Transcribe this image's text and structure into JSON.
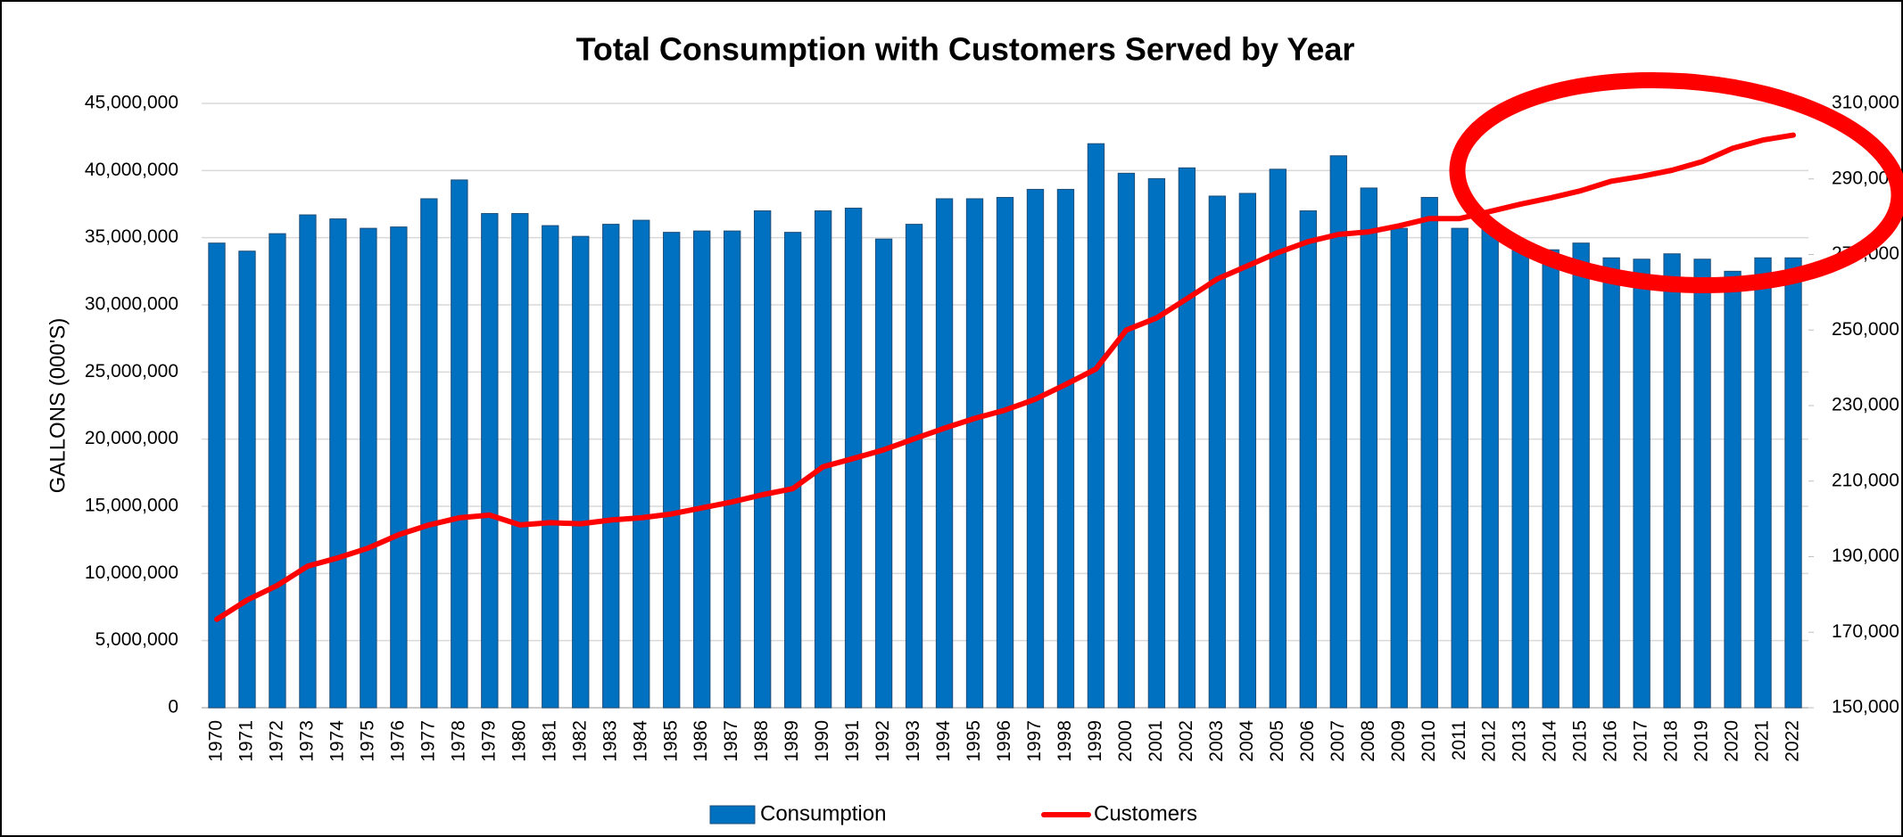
{
  "chart_data": {
    "type": "bar_line",
    "title": "Total Consumption with Customers Served by Year",
    "y_label": "GALLONS (000'S)",
    "categories": [
      "1970",
      "1971",
      "1972",
      "1973",
      "1974",
      "1975",
      "1976",
      "1977",
      "1978",
      "1979",
      "1980",
      "1981",
      "1982",
      "1983",
      "1984",
      "1985",
      "1986",
      "1987",
      "1988",
      "1989",
      "1990",
      "1991",
      "1992",
      "1993",
      "1994",
      "1995",
      "1996",
      "1997",
      "1998",
      "1999",
      "2000",
      "2001",
      "2002",
      "2003",
      "2004",
      "2005",
      "2006",
      "2007",
      "2008",
      "2009",
      "2010",
      "2011",
      "2012",
      "2013",
      "2014",
      "2015",
      "2016",
      "2017",
      "2018",
      "2019",
      "2020",
      "2021",
      "2022"
    ],
    "series": [
      {
        "name": "Consumption",
        "color": "#0070c0",
        "axis": "y",
        "values": [
          34600000,
          34000000,
          35300000,
          36700000,
          36400000,
          35700000,
          35800000,
          37900000,
          39300000,
          36800000,
          36800000,
          35900000,
          35100000,
          36000000,
          36300000,
          35400000,
          35500000,
          35500000,
          37000000,
          35400000,
          37000000,
          37200000,
          34900000,
          36000000,
          37900000,
          37900000,
          38000000,
          38600000,
          38600000,
          42000000,
          39800000,
          39400000,
          40200000,
          38100000,
          38300000,
          40100000,
          37000000,
          41100000,
          38700000,
          35700000,
          38000000,
          35700000,
          35900000,
          34500000,
          34100000,
          34600000,
          33500000,
          33400000,
          33800000,
          33400000,
          32500000,
          33500000,
          33500000
        ]
      },
      {
        "name": "Customers",
        "color": "#ff0000",
        "axis": "y2",
        "values": [
          173400,
          178500,
          182400,
          187500,
          189700,
          192300,
          195800,
          198400,
          200300,
          201000,
          198400,
          199000,
          198700,
          199700,
          200300,
          201300,
          202900,
          204500,
          206400,
          208000,
          213800,
          216000,
          218300,
          221200,
          224000,
          226600,
          228800,
          231700,
          235600,
          239700,
          250000,
          253200,
          258300,
          263500,
          267000,
          270500,
          273400,
          275300,
          276000,
          277600,
          279500,
          279500,
          281400,
          283300,
          285000,
          286900,
          289400,
          290700,
          292300,
          294600,
          298100,
          300300,
          301600
        ]
      }
    ],
    "ylim": [
      0,
      45000000
    ],
    "yticks": [
      0,
      {
        "value": 5000000,
        "label": "5,000,000"
      },
      {
        "value": 10000000,
        "label": "10,000,000"
      },
      {
        "value": 15000000,
        "label": "15,000,000"
      },
      {
        "value": 20000000,
        "label": "20,000,000"
      },
      {
        "value": 25000000,
        "label": "25,000,000"
      },
      {
        "value": 30000000,
        "label": "30,000,000"
      },
      {
        "value": 35000000,
        "label": "35,000,000"
      },
      {
        "value": 40000000,
        "label": "40,000,000"
      },
      {
        "value": 45000000,
        "label": "45,000,000"
      }
    ],
    "y2lim": [
      150000,
      310000
    ],
    "y2ticks": [
      {
        "value": 150000,
        "label": "150,000"
      },
      {
        "value": 170000,
        "label": "170,000"
      },
      {
        "value": 190000,
        "label": "190,000"
      },
      {
        "value": 210000,
        "label": "210,000"
      },
      {
        "value": 230000,
        "label": "230,000"
      },
      {
        "value": 250000,
        "label": "250,000"
      },
      {
        "value": 270000,
        "label": "270,000"
      },
      {
        "value": 290000,
        "label": "290,000"
      },
      {
        "value": 310000,
        "label": "310,000"
      }
    ],
    "grid": true,
    "legend": "bottom"
  }
}
